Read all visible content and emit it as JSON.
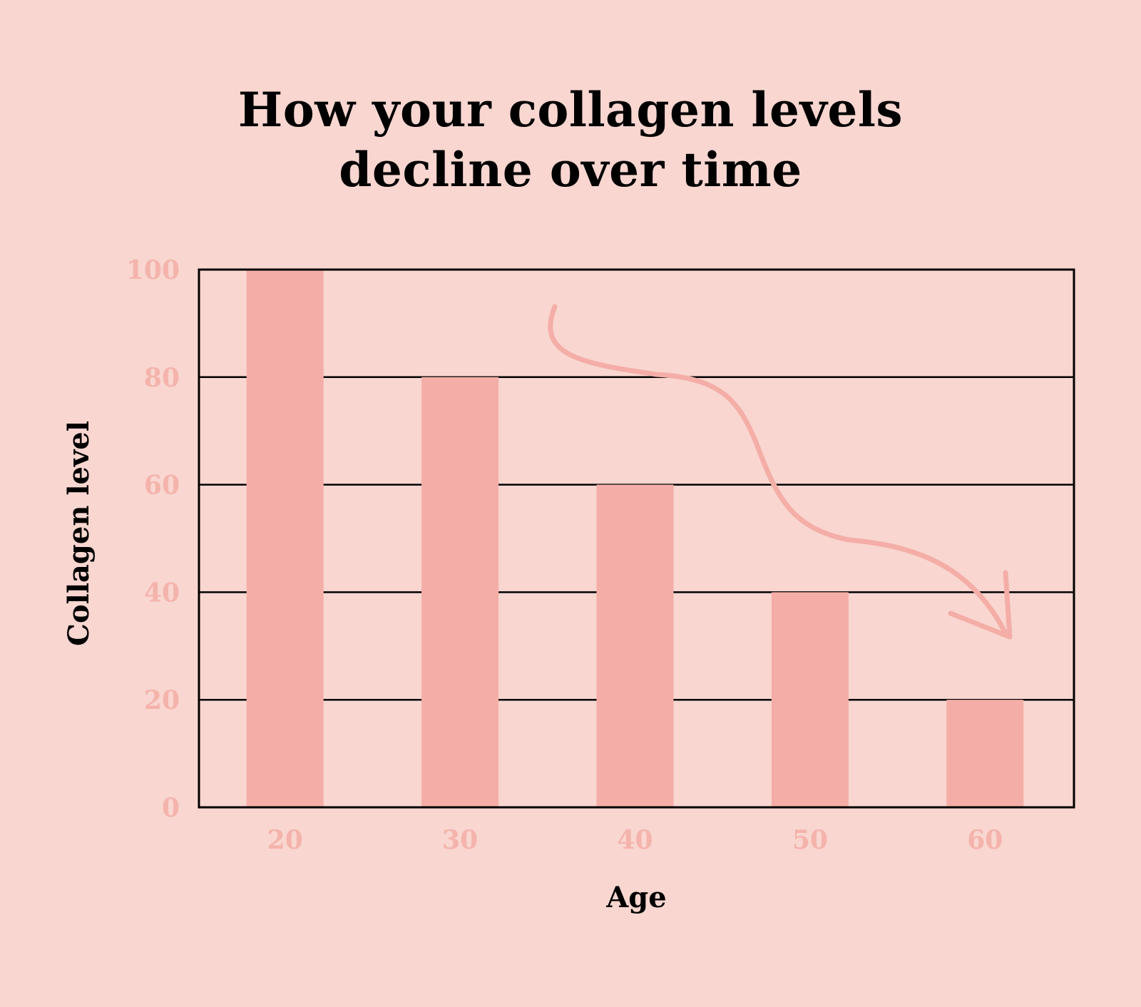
{
  "title_lines": [
    "How your collagen levels",
    "decline over time"
  ],
  "colors": {
    "background": "#f9d6d0",
    "bar": "#f4aea7",
    "tick_text": "#f4b3ab",
    "arrow": "#f4aea7",
    "grid": "#000000"
  },
  "chart_data": {
    "type": "bar",
    "title": "How your collagen levels decline over time",
    "xlabel": "Age",
    "ylabel": "Collagen level",
    "categories": [
      "20",
      "30",
      "40",
      "50",
      "60"
    ],
    "values": [
      100,
      80,
      60,
      40,
      20
    ],
    "ylim": [
      0,
      100
    ],
    "yticks": [
      "0",
      "20",
      "40",
      "60",
      "80",
      "100"
    ],
    "grid": true,
    "annotation": "downward-trend-arrow"
  }
}
